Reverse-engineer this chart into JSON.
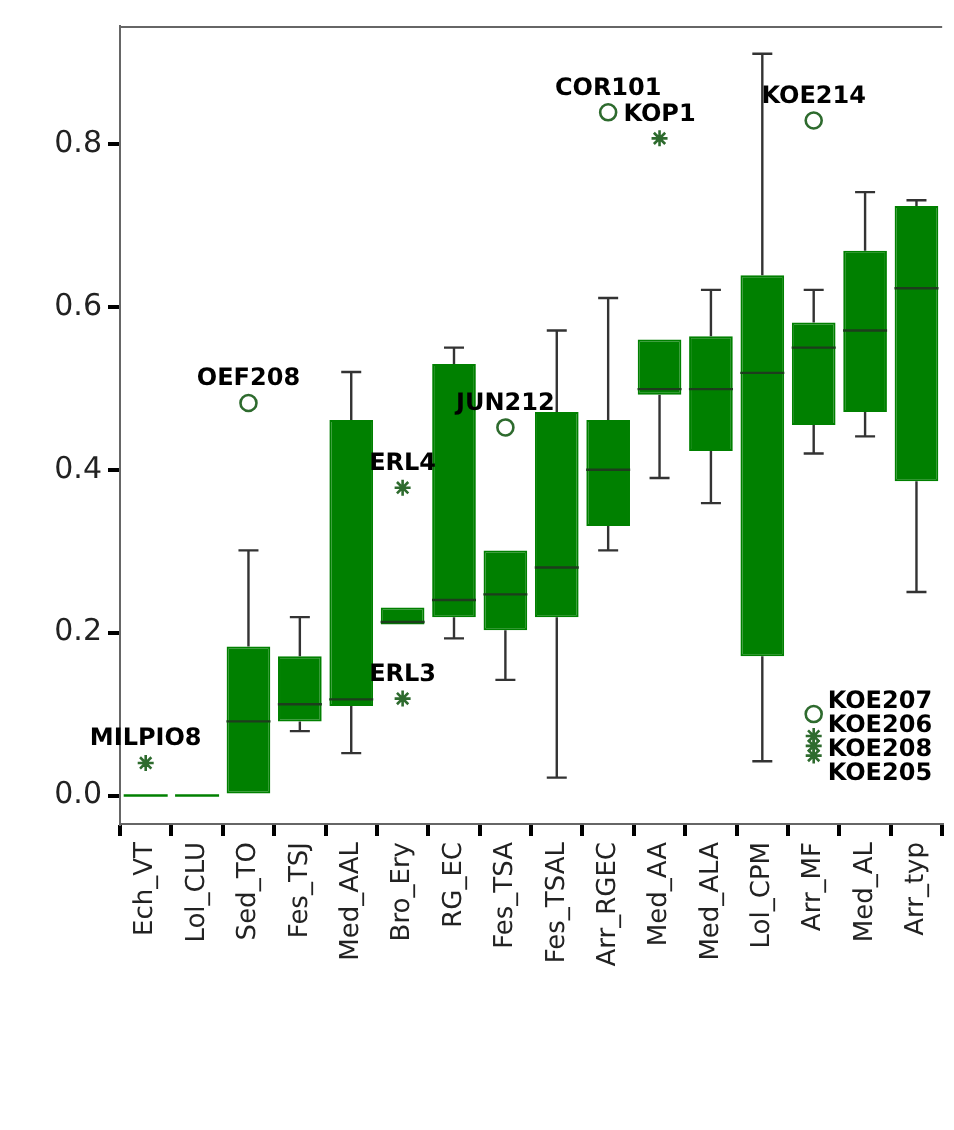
{
  "chart_data": {
    "type": "box",
    "categories": [
      "Ech_VT",
      "Lol_CLU",
      "Sed_TO",
      "Fes_TSJ",
      "Med_AAL",
      "Bro_Ery",
      "RG_EC",
      "Fes_TSA",
      "Fes_TSAL",
      "Arr_RGEC",
      "Med_AA",
      "Med_ALA",
      "Lol_CPM",
      "Arr_MF",
      "Med_AL",
      "Arr_typ"
    ],
    "ylim": [
      -0.035,
      0.945
    ],
    "yticks": [
      {
        "value": 0,
        "label": "0.0"
      },
      {
        "value": 0.2,
        "label": "0.2"
      },
      {
        "value": 0.4,
        "label": "0.4"
      },
      {
        "value": 0.6,
        "label": "0.6"
      },
      {
        "value": 0.8,
        "label": "0.8"
      }
    ],
    "series": [
      {
        "type": "box",
        "color": "#008000",
        "boxes": [
          {
            "low": 0,
            "q1": 0,
            "median": 0,
            "q3": 0,
            "high": 0
          },
          {
            "low": 0,
            "q1": 0,
            "median": 0,
            "q3": 0,
            "high": 0
          },
          {
            "low": 0,
            "q1": 0,
            "median": 0.091,
            "q3": 0.183,
            "high": 0.301
          },
          {
            "low": 0.079,
            "q1": 0.091,
            "median": 0.112,
            "q3": 0.171,
            "high": 0.219
          },
          {
            "low": 0.052,
            "q1": 0.11,
            "median": 0.118,
            "q3": 0.461,
            "high": 0.52
          },
          {
            "low": 0.21,
            "q1": 0.21,
            "median": 0.213,
            "q3": 0.231,
            "high": 0.231
          },
          {
            "low": 0.193,
            "q1": 0.219,
            "median": 0.24,
            "q3": 0.53,
            "high": 0.55
          },
          {
            "low": 0.142,
            "q1": 0.203,
            "median": 0.247,
            "q3": 0.301,
            "high": 0.301
          },
          {
            "low": 0.022,
            "q1": 0.219,
            "median": 0.28,
            "q3": 0.471,
            "high": 0.571
          },
          {
            "low": 0.301,
            "q1": 0.331,
            "median": 0.4,
            "q3": 0.461,
            "high": 0.611
          },
          {
            "low": 0.39,
            "q1": 0.492,
            "median": 0.499,
            "q3": 0.56,
            "high": 0.56
          },
          {
            "low": 0.359,
            "q1": 0.423,
            "median": 0.499,
            "q3": 0.564,
            "high": 0.621
          },
          {
            "low": 0.042,
            "q1": 0.171,
            "median": 0.519,
            "q3": 0.639,
            "high": 0.911
          },
          {
            "low": 0.42,
            "q1": 0.455,
            "median": 0.55,
            "q3": 0.581,
            "high": 0.621
          },
          {
            "low": 0.441,
            "q1": 0.471,
            "median": 0.571,
            "q3": 0.669,
            "high": 0.741
          },
          {
            "low": 0.25,
            "q1": 0.386,
            "median": 0.623,
            "q3": 0.724,
            "high": 0.731
          }
        ]
      },
      {
        "type": "scatter",
        "marker": "circle",
        "color": "#2e6b2e",
        "x": [
          "Sed_TO",
          "Fes_TSA",
          "Arr_RGEC",
          "Arr_MF",
          "Arr_MF"
        ],
        "values": [
          0.482,
          0.452,
          0.839,
          0.829,
          0.1
        ]
      },
      {
        "type": "scatter",
        "marker": "cross",
        "color": "#2e6b2e",
        "x": [
          "Ech_VT",
          "Bro_Ery",
          "Bro_Ery",
          "Med_AA",
          "Arr_MF",
          "Arr_MF",
          "Arr_MF"
        ],
        "values": [
          0.04,
          0.378,
          0.119,
          0.807,
          0.073,
          0.061,
          0.049
        ]
      }
    ],
    "annotations": [
      {
        "text": "MILPIO8",
        "x": "Ech_VT",
        "y": 0.04
      },
      {
        "text": "OEF208",
        "x": "Sed_TO",
        "y": 0.482
      },
      {
        "text": "ERL4",
        "x": "Bro_Ery",
        "y": 0.378
      },
      {
        "text": "ERL3",
        "x": "Bro_Ery",
        "y": 0.119
      },
      {
        "text": "JUN212",
        "x": "Fes_TSA",
        "y": 0.452
      },
      {
        "text": "COR101",
        "x": "Arr_RGEC",
        "y": 0.839
      },
      {
        "text": "KOP1",
        "x": "Med_AA",
        "y": 0.807
      },
      {
        "text": "KOE214",
        "x": "Arr_MF",
        "y": 0.829
      },
      {
        "text": "KOE207",
        "x": "Arr_MF",
        "y": 0.1
      },
      {
        "text": "KOE206",
        "x": "Arr_MF",
        "y": 0.073
      },
      {
        "text": "KOE208",
        "x": "Arr_MF",
        "y": 0.061
      },
      {
        "text": "KOE205",
        "x": "Arr_MF",
        "y": 0.049
      }
    ]
  }
}
